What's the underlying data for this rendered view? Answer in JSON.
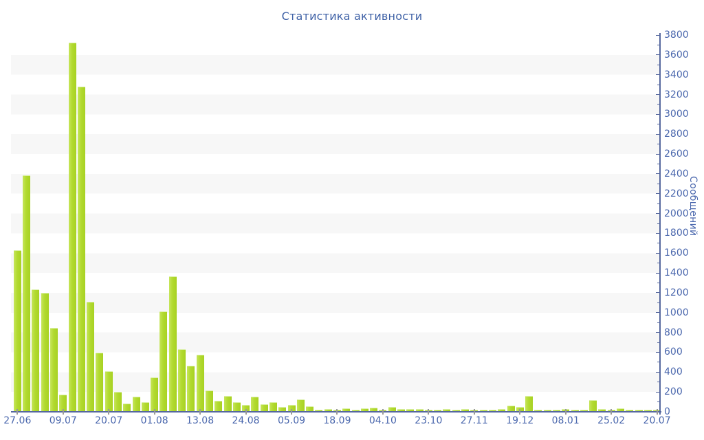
{
  "title": "Статистика активности",
  "chart_data": {
    "type": "bar",
    "title": "Статистика активности",
    "ylabel": "Сообщений",
    "xlabel": "",
    "ylim": [
      0,
      3800
    ],
    "y_major_tick_step": 200,
    "y_minor_tick_step": 100,
    "grid": "horizontal-stripes-every-200",
    "legend_position": "none",
    "x_tick_labels": [
      "27.06",
      "09.07",
      "20.07",
      "01.08",
      "13.08",
      "24.08",
      "05.09",
      "18.09",
      "04.10",
      "23.10",
      "27.11",
      "19.12",
      "08.01",
      "25.02",
      "20.07"
    ],
    "x_tick_every_n_bars": 5,
    "values": [
      1620,
      2380,
      1230,
      1195,
      840,
      165,
      3720,
      3270,
      1100,
      590,
      400,
      195,
      75,
      145,
      90,
      340,
      1005,
      1360,
      625,
      455,
      570,
      210,
      105,
      155,
      90,
      65,
      145,
      70,
      90,
      40,
      60,
      115,
      50,
      10,
      20,
      15,
      25,
      5,
      30,
      35,
      12,
      45,
      20,
      23,
      23,
      15,
      12,
      20,
      15,
      20,
      12,
      15,
      12,
      20,
      55,
      45,
      155,
      12,
      12,
      5,
      20,
      12,
      12,
      110,
      20,
      5,
      30,
      15,
      15,
      12,
      5
    ],
    "colors": {
      "bar_main": "#b2da30",
      "bar_light": "#c6e55b",
      "bar_dark": "#a7d122",
      "bar_top_cap": "#d8efa0",
      "axis_line": "#55679e",
      "axis_text": "#4a67ad",
      "title_text": "#3c5fa5",
      "x_tick_mark": "#999999",
      "stripe_gray": "#f7f7f7",
      "background": "#ffffff"
    }
  }
}
